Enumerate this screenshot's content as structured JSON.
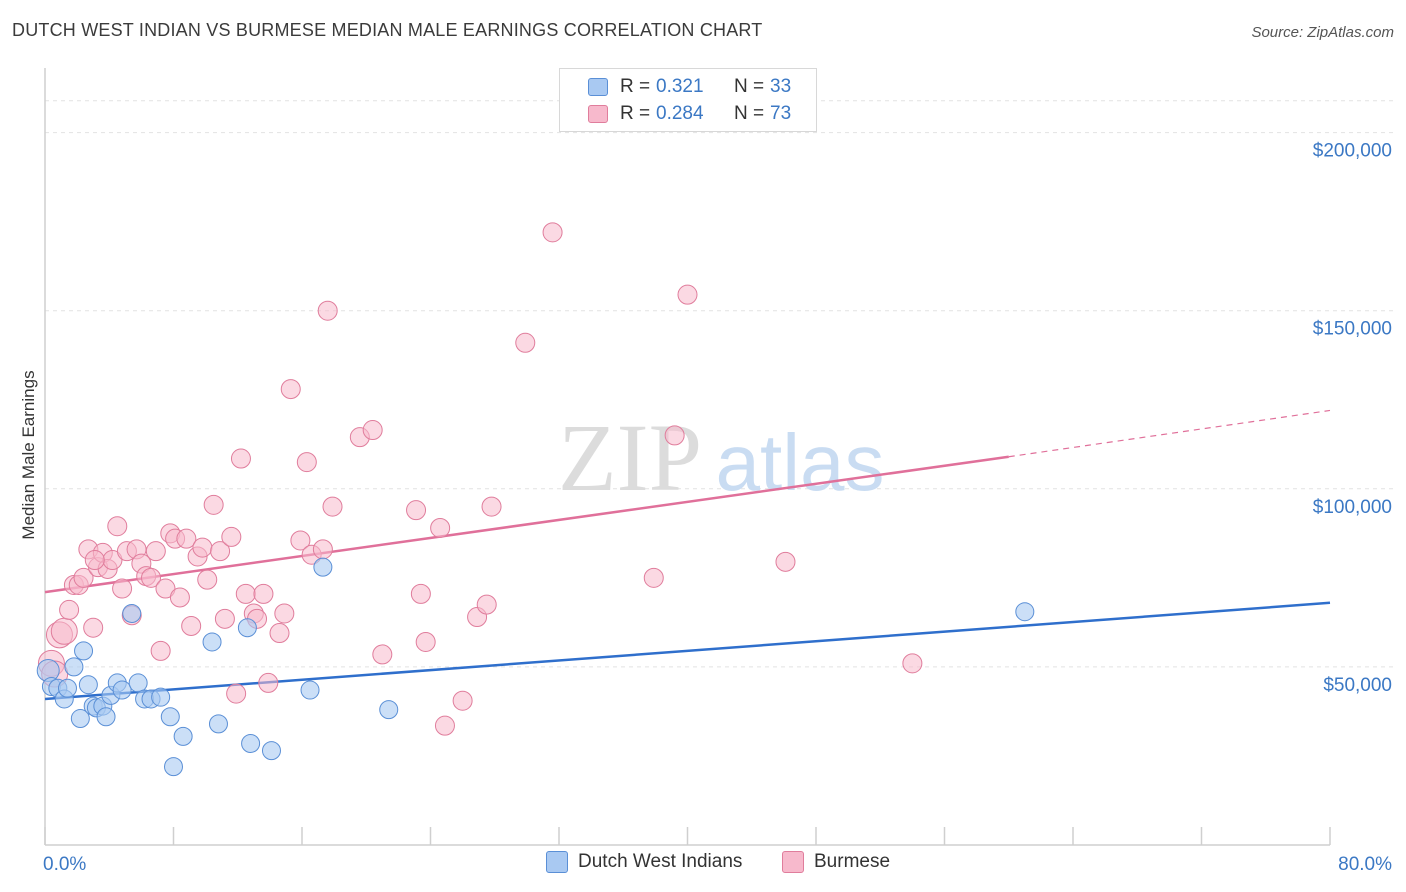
{
  "title": "DUTCH WEST INDIAN VS BURMESE MEDIAN MALE EARNINGS CORRELATION CHART",
  "source": "Source: ZipAtlas.com",
  "watermark": {
    "zip": "ZIP",
    "atlas": "atlas"
  },
  "legend": [
    {
      "r_label": "R =",
      "r_value": "0.321",
      "n_label": "N =",
      "n_value": "33",
      "color": "#a9c9f2"
    },
    {
      "r_label": "R =",
      "r_value": "0.284",
      "n_label": "N =",
      "n_value": "73",
      "color": "#f7b9cc"
    }
  ],
  "colors": {
    "blue_fill": "#a9c9f2",
    "blue_stroke": "#5a8fd6",
    "blue_line": "#2f6fcc",
    "pink_fill": "#f7b9cc",
    "pink_stroke": "#e07d9c",
    "pink_line": "#e0709a",
    "grid": "#e2e2e2",
    "axis_text": "#3b78c4"
  },
  "chart_data": {
    "type": "scatter",
    "title": "DUTCH WEST INDIAN VS BURMESE MEDIAN MALE EARNINGS CORRELATION CHART",
    "xlabel": "",
    "ylabel": "Median Male Earnings",
    "xlim": [
      0,
      80
    ],
    "ylim": [
      0,
      210000
    ],
    "x_tick_labels": [
      "0.0%",
      "80.0%"
    ],
    "y_ticks": [
      50000,
      100000,
      150000,
      200000
    ],
    "y_tick_labels": [
      "$50,000",
      "$100,000",
      "$150,000",
      "$200,000"
    ],
    "series": [
      {
        "name": "Dutch West Indians",
        "r": 0.321,
        "n": 33,
        "trend": {
          "x": [
            0,
            80
          ],
          "y": [
            41000,
            68000
          ]
        },
        "points": [
          [
            0.2,
            49000
          ],
          [
            0.4,
            44500
          ],
          [
            0.8,
            44000
          ],
          [
            1.2,
            41000
          ],
          [
            1.4,
            44000
          ],
          [
            1.8,
            50000
          ],
          [
            2.2,
            35500
          ],
          [
            2.4,
            54500
          ],
          [
            2.7,
            45000
          ],
          [
            3.0,
            39000
          ],
          [
            3.2,
            38500
          ],
          [
            3.6,
            39000
          ],
          [
            3.8,
            36000
          ],
          [
            4.1,
            42000
          ],
          [
            4.5,
            45500
          ],
          [
            4.8,
            43500
          ],
          [
            5.4,
            65000
          ],
          [
            5.8,
            45500
          ],
          [
            6.2,
            41000
          ],
          [
            6.6,
            41000
          ],
          [
            7.2,
            41500
          ],
          [
            7.8,
            36000
          ],
          [
            8.6,
            30500
          ],
          [
            10.4,
            57000
          ],
          [
            10.8,
            34000
          ],
          [
            12.6,
            61000
          ],
          [
            12.8,
            28500
          ],
          [
            14.1,
            26500
          ],
          [
            16.5,
            43500
          ],
          [
            17.3,
            78000
          ],
          [
            21.4,
            38000
          ],
          [
            61.0,
            65500
          ],
          [
            8.0,
            22000
          ]
        ]
      },
      {
        "name": "Burmese",
        "r": 0.284,
        "n": 73,
        "trend": {
          "x": [
            0,
            60
          ],
          "y": [
            71000,
            109000
          ]
        },
        "trend_dashed": {
          "x": [
            60,
            80
          ],
          "y": [
            109000,
            122000
          ]
        },
        "points": [
          [
            0.4,
            51000
          ],
          [
            0.6,
            48000
          ],
          [
            0.9,
            59000
          ],
          [
            1.2,
            60000
          ],
          [
            1.5,
            66000
          ],
          [
            1.8,
            73000
          ],
          [
            2.1,
            73000
          ],
          [
            2.4,
            75000
          ],
          [
            2.7,
            83000
          ],
          [
            3.0,
            61000
          ],
          [
            3.3,
            78000
          ],
          [
            3.6,
            82000
          ],
          [
            3.9,
            77500
          ],
          [
            4.2,
            80000
          ],
          [
            4.5,
            89500
          ],
          [
            4.8,
            72000
          ],
          [
            5.1,
            82500
          ],
          [
            5.4,
            64500
          ],
          [
            5.7,
            83000
          ],
          [
            6.0,
            79000
          ],
          [
            6.3,
            75500
          ],
          [
            6.6,
            75000
          ],
          [
            6.9,
            82500
          ],
          [
            7.2,
            54500
          ],
          [
            7.5,
            72000
          ],
          [
            7.8,
            87500
          ],
          [
            8.1,
            86000
          ],
          [
            8.4,
            69500
          ],
          [
            8.8,
            86000
          ],
          [
            9.1,
            61500
          ],
          [
            9.5,
            81000
          ],
          [
            9.8,
            83500
          ],
          [
            10.1,
            74500
          ],
          [
            10.5,
            95500
          ],
          [
            10.9,
            82500
          ],
          [
            11.2,
            63500
          ],
          [
            11.6,
            86500
          ],
          [
            11.9,
            42500
          ],
          [
            12.2,
            108500
          ],
          [
            12.5,
            70500
          ],
          [
            13.0,
            65000
          ],
          [
            13.2,
            63500
          ],
          [
            13.6,
            70500
          ],
          [
            13.9,
            45500
          ],
          [
            14.6,
            59500
          ],
          [
            14.9,
            65000
          ],
          [
            15.3,
            128000
          ],
          [
            15.9,
            85500
          ],
          [
            16.3,
            107500
          ],
          [
            16.6,
            81500
          ],
          [
            17.3,
            83000
          ],
          [
            17.6,
            150000
          ],
          [
            17.9,
            95000
          ],
          [
            19.6,
            114500
          ],
          [
            20.4,
            116500
          ],
          [
            21.0,
            53500
          ],
          [
            23.1,
            94000
          ],
          [
            23.4,
            70500
          ],
          [
            23.7,
            57000
          ],
          [
            24.6,
            89000
          ],
          [
            24.9,
            33500
          ],
          [
            26.0,
            40500
          ],
          [
            26.9,
            64000
          ],
          [
            27.5,
            67500
          ],
          [
            27.8,
            95000
          ],
          [
            29.9,
            141000
          ],
          [
            31.6,
            172000
          ],
          [
            37.9,
            75000
          ],
          [
            39.2,
            115000
          ],
          [
            40.0,
            154500
          ],
          [
            46.1,
            79500
          ],
          [
            54.0,
            51000
          ],
          [
            3.1,
            80000
          ]
        ]
      }
    ]
  },
  "bottom_legend": [
    {
      "label": "Dutch West Indians"
    },
    {
      "label": "Burmese"
    }
  ]
}
